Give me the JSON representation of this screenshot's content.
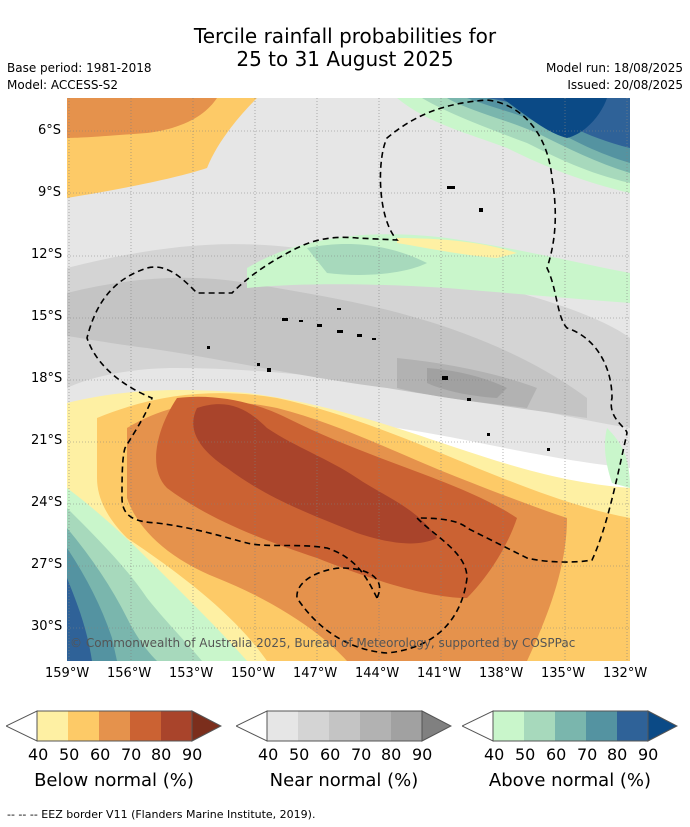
{
  "header": {
    "title_line1": "Tercile rainfall probabilities for",
    "title_line2": "25 to 31 August 2025",
    "base_period": "Base period: 1981-2018",
    "model": "Model: ACCESS-S2",
    "model_run": "Model run: 18/08/2025",
    "issued": "Issued: 20/08/2025"
  },
  "map": {
    "lat_ticks": [
      "6°S",
      "9°S",
      "12°S",
      "15°S",
      "18°S",
      "21°S",
      "24°S",
      "27°S",
      "30°S"
    ],
    "lon_ticks": [
      "159°W",
      "156°W",
      "153°W",
      "150°W",
      "147°W",
      "144°W",
      "141°W",
      "138°W",
      "135°W",
      "132°W"
    ],
    "copyright": "© Commonwealth of Australia 2025, Bureau of Meteorology, supported by COSPPac",
    "gridlines": true,
    "boundary_style": "dashed"
  },
  "legend": {
    "bars": [
      {
        "label": "Below normal (%)",
        "colors": [
          "#fef0a3",
          "#fdca67",
          "#e5924c",
          "#cb6233",
          "#a9442b"
        ],
        "ticks": [
          "40",
          "50",
          "60",
          "70",
          "80",
          "90"
        ]
      },
      {
        "label": "Near normal (%)",
        "colors": [
          "#e6e6e6",
          "#d4d4d4",
          "#c4c4c4",
          "#b2b2b2",
          "#a1a1a1"
        ],
        "ticks": [
          "40",
          "50",
          "60",
          "70",
          "80",
          "90"
        ]
      },
      {
        "label": "Above normal (%)",
        "colors": [
          "#c9f6cb",
          "#a7d9bc",
          "#7ab6ad",
          "#5493a1",
          "#2f6298"
        ],
        "ticks": [
          "40",
          "50",
          "60",
          "70",
          "80",
          "90"
        ]
      }
    ],
    "footnote": "--  --  -- EEZ border V11 (Flanders Marine Institute, 2019)."
  }
}
